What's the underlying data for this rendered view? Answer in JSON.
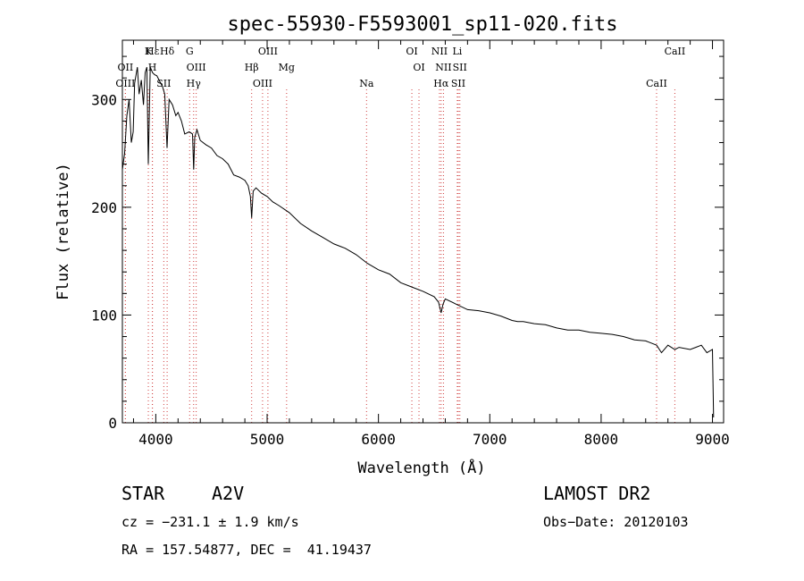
{
  "chart_data": {
    "type": "line",
    "title": "spec-55930-F5593001_sp11-020.fits",
    "xlabel": "Wavelength (Å)",
    "ylabel": "Flux (relative)",
    "xlim": [
      3700,
      9100
    ],
    "ylim": [
      0,
      355
    ],
    "xticks": [
      4000,
      5000,
      6000,
      7000,
      8000,
      9000
    ],
    "yticks": [
      0,
      100,
      200,
      300
    ],
    "grid": false,
    "series": [
      {
        "x": [
          3700,
          3720,
          3740,
          3760,
          3780,
          3797,
          3810,
          3835,
          3850,
          3870,
          3889,
          3905,
          3920,
          3933,
          3950,
          3970,
          3990,
          4010,
          4030,
          4060,
          4080,
          4101,
          4120,
          4150,
          4180,
          4200,
          4230,
          4260,
          4300,
          4330,
          4340,
          4350,
          4370,
          4400,
          4450,
          4500,
          4550,
          4600,
          4650,
          4700,
          4750,
          4800,
          4830,
          4850,
          4861,
          4875,
          4900,
          4950,
          5000,
          5050,
          5100,
          5200,
          5300,
          5400,
          5500,
          5600,
          5700,
          5800,
          5900,
          6000,
          6100,
          6200,
          6300,
          6400,
          6500,
          6540,
          6563,
          6580,
          6600,
          6700,
          6800,
          6900,
          7000,
          7100,
          7200,
          7250,
          7300,
          7400,
          7500,
          7600,
          7700,
          7800,
          7900,
          8000,
          8100,
          8200,
          8300,
          8400,
          8450,
          8498,
          8542,
          8600,
          8662,
          8700,
          8800,
          8850,
          8900,
          8950,
          9000,
          9010
        ],
        "values": [
          235,
          250,
          285,
          300,
          260,
          270,
          315,
          330,
          305,
          318,
          295,
          325,
          330,
          240,
          330,
          325,
          323,
          322,
          318,
          312,
          305,
          255,
          300,
          295,
          285,
          288,
          280,
          268,
          270,
          268,
          235,
          265,
          272,
          262,
          258,
          255,
          248,
          245,
          240,
          230,
          228,
          225,
          220,
          210,
          190,
          215,
          218,
          213,
          210,
          205,
          202,
          195,
          185,
          178,
          172,
          166,
          162,
          156,
          148,
          142,
          138,
          130,
          126,
          122,
          117,
          112,
          102,
          110,
          115,
          110,
          105,
          104,
          102,
          99,
          95,
          94,
          94,
          92,
          91,
          88,
          86,
          86,
          84,
          83,
          82,
          80,
          77,
          76,
          74,
          72,
          65,
          72,
          68,
          70,
          68,
          70,
          72,
          65,
          68,
          5
        ]
      }
    ],
    "lines": [
      {
        "label": "Hε",
        "x": 3970
      },
      {
        "label": "OII",
        "x": 3727
      },
      {
        "label": "OIII",
        "x": 3727
      },
      {
        "label": "K",
        "x": 3933
      },
      {
        "label": "H",
        "x": 3969
      },
      {
        "label": "SII",
        "x": 4072
      },
      {
        "label": "Hδ",
        "x": 4102
      },
      {
        "label": "OIII",
        "x": 4363
      },
      {
        "label": "Hγ",
        "x": 4340
      },
      {
        "label": "G",
        "x": 4304
      },
      {
        "label": "Hβ",
        "x": 4861
      },
      {
        "label": "OIII",
        "x": 4959
      },
      {
        "label": "OIII",
        "x": 5007
      },
      {
        "label": "Mg",
        "x": 5175
      },
      {
        "label": "Na",
        "x": 5893
      },
      {
        "label": "OI",
        "x": 6300
      },
      {
        "label": "OI",
        "x": 6364
      },
      {
        "label": "Hα",
        "x": 6563
      },
      {
        "label": "NII",
        "x": 6548
      },
      {
        "label": "NII",
        "x": 6584
      },
      {
        "label": "SII",
        "x": 6717
      },
      {
        "label": "Li",
        "x": 6708
      },
      {
        "label": "SII",
        "x": 6731
      },
      {
        "label": "CaII",
        "x": 8498
      },
      {
        "label": "CaII",
        "x": 8662
      }
    ]
  },
  "info": {
    "class": "STAR",
    "subclass": "A2V",
    "survey": "LAMOST DR2",
    "cz": "cz = −231.1 ± 1.9 km/s",
    "obs_date": "Obs−Date: 20120103",
    "coords": "RA = 157.54877, DEC =  41.19437"
  }
}
